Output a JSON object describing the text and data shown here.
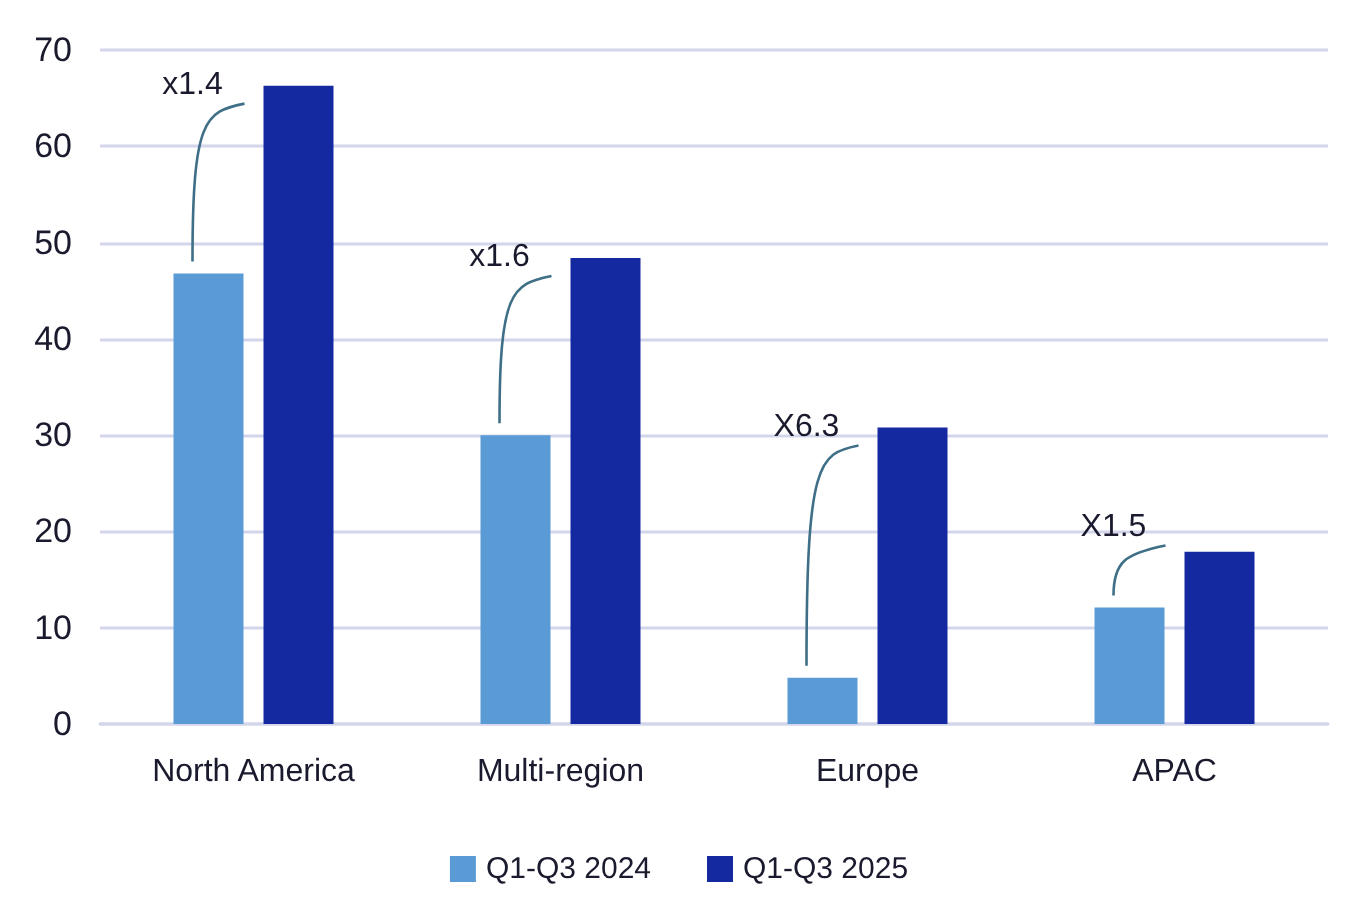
{
  "chart_data": {
    "type": "bar",
    "categories": [
      "North America",
      "Multi-region",
      "Europe",
      "APAC"
    ],
    "series": [
      {
        "name": "Q1-Q3 2024",
        "color": "#5b9bd5",
        "values": [
          46.8,
          30,
          4.8,
          12.1
        ]
      },
      {
        "name": "Q1-Q3 2025",
        "color": "#1428a0",
        "values": [
          66.3,
          48.4,
          30.8,
          17.9
        ]
      }
    ],
    "ylim": [
      0,
      70
    ],
    "yticks": [
      0,
      10,
      20,
      30,
      40,
      50,
      60,
      70
    ],
    "grid": "y",
    "legend": "bottom",
    "annotations": [
      "x1.4",
      "x1.6",
      "X6.3",
      "X1.5"
    ]
  }
}
